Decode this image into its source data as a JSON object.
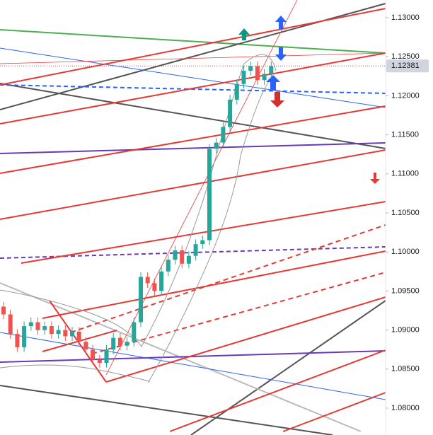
{
  "chart_data": {
    "type": "candlestick",
    "ylim": [
      1.07656,
      1.13226
    ],
    "yticks": [
      {
        "value": 1.08,
        "label": "1.08000"
      },
      {
        "value": 1.085,
        "label": "1.08500"
      },
      {
        "value": 1.09,
        "label": "1.09000"
      },
      {
        "value": 1.095,
        "label": "1.09500"
      },
      {
        "value": 1.1,
        "label": "1.10000"
      },
      {
        "value": 1.105,
        "label": "1.10500"
      },
      {
        "value": 1.11,
        "label": "1.11000"
      },
      {
        "value": 1.115,
        "label": "1.11500"
      },
      {
        "value": 1.12,
        "label": "1.12000"
      },
      {
        "value": 1.125,
        "label": "1.12500"
      },
      {
        "value": 1.13,
        "label": "1.13000"
      }
    ],
    "last_price": {
      "value": 1.12381,
      "label": "1.12381"
    },
    "up_color": "#26a69a",
    "down_color": "#ef5350",
    "open": [
      1.093,
      1.092,
      1.0895,
      1.0878,
      1.0905,
      1.091,
      1.09,
      1.0905,
      1.0895,
      1.09,
      1.0892,
      1.0898,
      1.0885,
      1.0875,
      1.0862,
      1.0858,
      1.0875,
      1.089,
      1.088,
      1.0885,
      1.091,
      1.0968,
      1.096,
      1.095,
      1.0975,
      1.099,
      1.1002,
      1.0985,
      1.0995,
      1.101,
      1.1015,
      1.1132,
      1.114,
      1.116,
      1.1195,
      1.1215,
      1.1232,
      1.1238,
      1.122,
      1.1228
    ],
    "high": [
      1.0936,
      1.0926,
      1.0901,
      1.0911,
      1.0916,
      1.0916,
      1.0911,
      1.0911,
      1.0906,
      1.0906,
      1.0904,
      1.0904,
      1.0891,
      1.0881,
      1.0868,
      1.0881,
      1.0896,
      1.0896,
      1.0891,
      1.0916,
      1.0974,
      1.0974,
      1.0966,
      1.0981,
      1.0996,
      1.1008,
      1.1008,
      1.1001,
      1.1016,
      1.1021,
      1.1138,
      1.1146,
      1.1166,
      1.1201,
      1.1221,
      1.1238,
      1.1244,
      1.1244,
      1.1234,
      1.1244
    ],
    "low": [
      1.0914,
      1.0889,
      1.0872,
      1.0872,
      1.0899,
      1.0894,
      1.0894,
      1.0889,
      1.0889,
      1.0886,
      1.0886,
      1.0879,
      1.0869,
      1.0856,
      1.0852,
      1.0852,
      1.0869,
      1.0874,
      1.0874,
      1.0879,
      1.0904,
      1.0954,
      1.0944,
      1.0944,
      1.0969,
      1.0984,
      1.0979,
      1.0979,
      1.0989,
      1.1004,
      1.1009,
      1.1126,
      1.1134,
      1.1154,
      1.1189,
      1.1209,
      1.1226,
      1.1214,
      1.1214,
      1.1222
    ],
    "close": [
      1.092,
      1.0895,
      1.0878,
      1.0905,
      1.091,
      1.09,
      1.0905,
      1.0895,
      1.09,
      1.0892,
      1.0898,
      1.0885,
      1.0875,
      1.0862,
      1.0858,
      1.0875,
      1.089,
      1.088,
      1.0885,
      1.091,
      1.0968,
      1.096,
      1.095,
      1.0975,
      1.099,
      1.1002,
      1.0985,
      1.0995,
      1.101,
      1.1015,
      1.1132,
      1.114,
      1.116,
      1.1195,
      1.1215,
      1.1232,
      1.1238,
      1.122,
      1.1228,
      1.1238
    ]
  }
}
